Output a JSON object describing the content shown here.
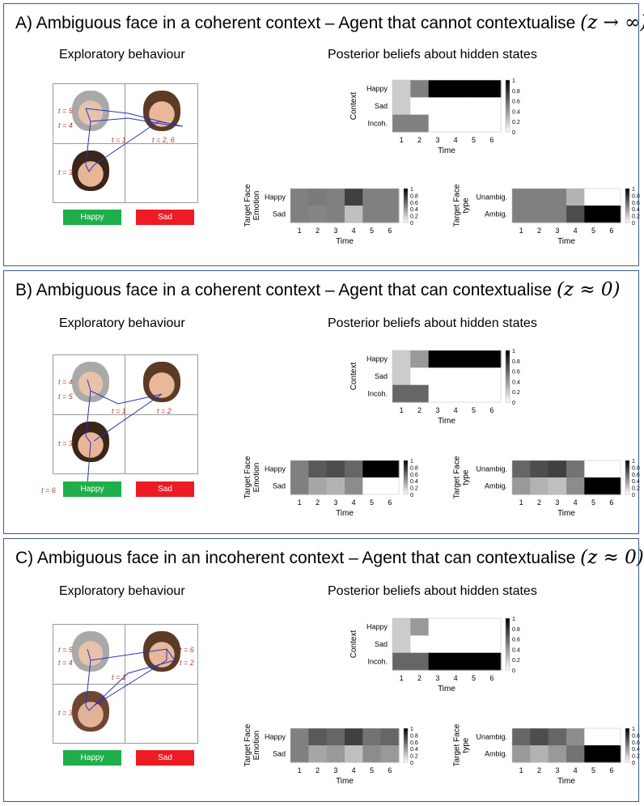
{
  "colors": {
    "panel_border": "#3b5a8c",
    "happy_button": "#1fae4b",
    "sad_button": "#ee1b24",
    "timestep_label": "#c0392b",
    "trajectory": "#2233cc"
  },
  "panels": [
    {
      "title": "A) Ambiguous face in a coherent context – Agent that cannot contextualise ",
      "z_label": "(z → ∞)",
      "exploratory_title": "Exploratory behaviour",
      "posterior_title": "Posterior beliefs about hidden states",
      "buttons": {
        "happy": "Happy",
        "sad": "Sad"
      },
      "faces": [
        "older-woman-face",
        "young-woman-face",
        "smiling-woman-face"
      ],
      "timestep_labels": [
        "t = 5",
        "t = 4",
        "t = 1",
        "t = 2, 6",
        "t = 3"
      ],
      "heatmaps": {
        "context": {
          "ylabel": "Context",
          "rows": [
            "Happy",
            "Sad",
            "Incoh."
          ],
          "values": [
            [
              0.2,
              0.5,
              1,
              1,
              1,
              1
            ],
            [
              0.2,
              0,
              0,
              0,
              0,
              0
            ],
            [
              0.5,
              0.5,
              0,
              0,
              0,
              0
            ]
          ]
        },
        "emotion": {
          "ylabel": "Target Face Emotion",
          "rows": [
            "Happy",
            "Sad"
          ],
          "values": [
            [
              0.5,
              0.52,
              0.5,
              0.75,
              0.5,
              0.5
            ],
            [
              0.5,
              0.48,
              0.5,
              0.25,
              0.5,
              0.5
            ]
          ]
        },
        "type": {
          "ylabel": "Target Face type",
          "rows": [
            "Unambig.",
            "Ambig."
          ],
          "values": [
            [
              0.5,
              0.5,
              0.5,
              0.3,
              0,
              0
            ],
            [
              0.5,
              0.5,
              0.5,
              0.7,
              1,
              1
            ]
          ]
        }
      }
    },
    {
      "title": "B) Ambiguous face in a coherent context – Agent that can contextualise ",
      "z_label": "(z ≈ 0)",
      "exploratory_title": "Exploratory behaviour",
      "posterior_title": "Posterior beliefs about hidden states",
      "buttons": {
        "happy": "Happy",
        "sad": "Sad"
      },
      "faces": [
        "older-woman-face",
        "young-woman-face",
        "smiling-woman-face"
      ],
      "timestep_labels": [
        "t = 4",
        "t = 5",
        "t = 1",
        "t = 2",
        "t = 3",
        "t = 6"
      ],
      "heatmaps": {
        "context": {
          "ylabel": "Context",
          "rows": [
            "Happy",
            "Sad",
            "Incoh."
          ],
          "values": [
            [
              0.2,
              0.4,
              1,
              1,
              1,
              1
            ],
            [
              0.2,
              0,
              0,
              0,
              0,
              0
            ],
            [
              0.6,
              0.6,
              0,
              0,
              0,
              0
            ]
          ]
        },
        "emotion": {
          "ylabel": "Target Face Emotion",
          "rows": [
            "Happy",
            "Sad"
          ],
          "values": [
            [
              0.5,
              0.65,
              0.7,
              0.6,
              1,
              1
            ],
            [
              0.5,
              0.35,
              0.3,
              0.45,
              0,
              0
            ]
          ]
        },
        "type": {
          "ylabel": "Target Face type",
          "rows": [
            "Unambig.",
            "Ambig."
          ],
          "values": [
            [
              0.6,
              0.7,
              0.75,
              0.55,
              0,
              0
            ],
            [
              0.4,
              0.3,
              0.25,
              0.45,
              1,
              1
            ]
          ]
        }
      }
    },
    {
      "title": "C) Ambiguous face in an incoherent context – Agent that can contextualise ",
      "z_label": "(z ≈ 0)",
      "exploratory_title": "Exploratory behaviour",
      "posterior_title": "Posterior beliefs about hidden states",
      "buttons": {
        "happy": "Happy",
        "sad": "Sad"
      },
      "faces": [
        "older-woman-face",
        "young-woman-face",
        "mature-woman-face"
      ],
      "timestep_labels": [
        "t = 5",
        "t = 4",
        "t = 1",
        "t = 6",
        "t = 2",
        "t = 3"
      ],
      "heatmaps": {
        "context": {
          "ylabel": "Context",
          "rows": [
            "Happy",
            "Sad",
            "Incoh."
          ],
          "values": [
            [
              0.2,
              0.4,
              0,
              0,
              0,
              0
            ],
            [
              0.2,
              0,
              0,
              0,
              0,
              0
            ],
            [
              0.6,
              0.6,
              1,
              1,
              1,
              1
            ]
          ]
        },
        "emotion": {
          "ylabel": "Target Face Emotion",
          "rows": [
            "Happy",
            "Sad"
          ],
          "values": [
            [
              0.5,
              0.65,
              0.6,
              0.75,
              0.55,
              0.6
            ],
            [
              0.5,
              0.35,
              0.4,
              0.25,
              0.45,
              0.4
            ]
          ]
        },
        "type": {
          "ylabel": "Target Face type",
          "rows": [
            "Unambig.",
            "Ambig."
          ],
          "values": [
            [
              0.6,
              0.7,
              0.6,
              0.45,
              0,
              0
            ],
            [
              0.4,
              0.3,
              0.4,
              0.55,
              1,
              1
            ]
          ]
        }
      }
    }
  ],
  "axis": {
    "time_label": "Time",
    "ticks": [
      "1",
      "2",
      "3",
      "4",
      "5",
      "6"
    ],
    "colorbar_ticks": [
      "1",
      "0.8",
      "0.6",
      "0.4",
      "0.2",
      "0"
    ]
  }
}
